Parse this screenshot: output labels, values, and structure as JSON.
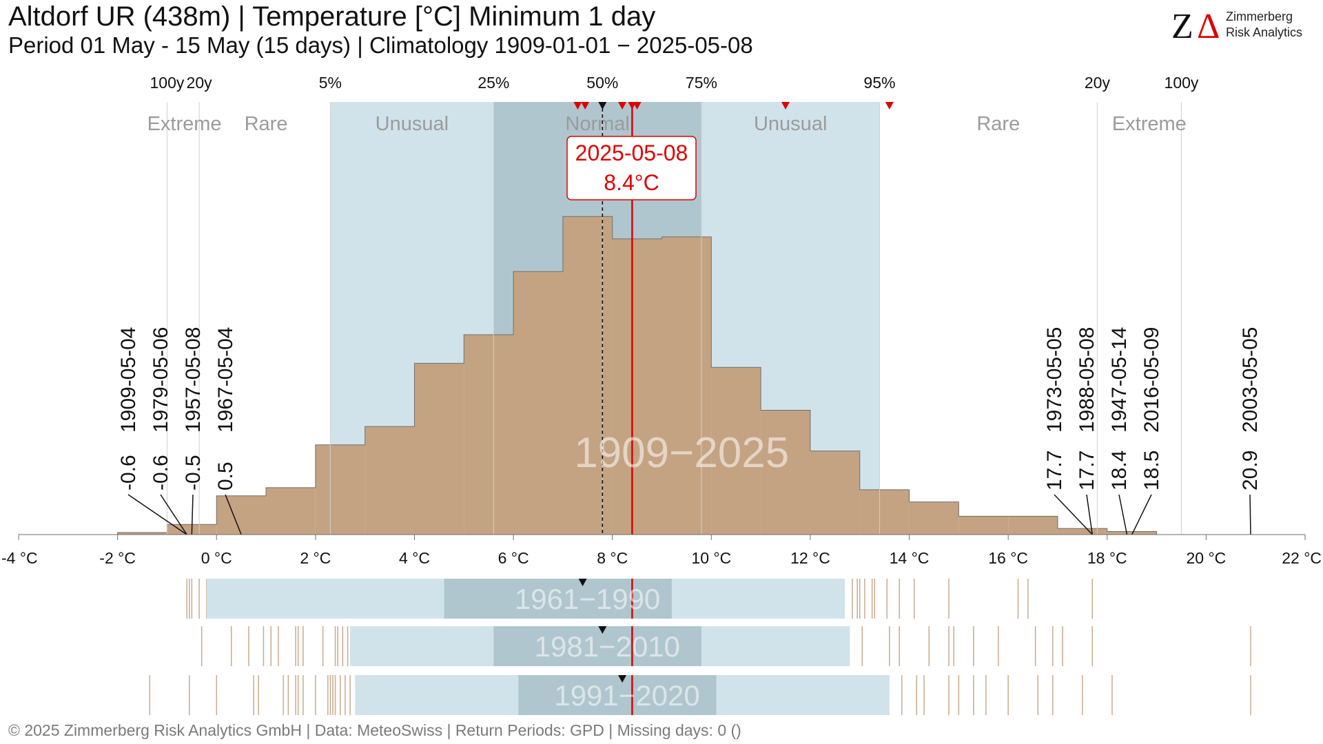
{
  "header": {
    "title": "Altdorf  UR (438m) | Temperature [°C] Minimum 1 day",
    "subtitle": "Period 01 May - 15 May (15 days) | Climatology 1909-01-01 − 2025-05-08"
  },
  "logo": {
    "mark_z": "Z",
    "mark_delta": "Δ",
    "line1": "Zimmerberg",
    "line2": "Risk Analytics"
  },
  "footer": {
    "text": "©  2025 Zimmerberg Risk Analytics GmbH | Data: MeteoSwiss | Return Periods: GPD | Missing days: 0 ()"
  },
  "chart_data": {
    "type": "bar",
    "title": "Altdorf  UR (438m) | Temperature [°C] Minimum 1 day",
    "xlabel": "",
    "ylabel": "",
    "x_range": [
      -4,
      22
    ],
    "x_ticks": [
      -4,
      -2,
      0,
      2,
      4,
      6,
      8,
      10,
      12,
      14,
      16,
      18,
      20,
      22
    ],
    "x_tick_unit": "°C",
    "period_label": "1909−2025",
    "histogram": {
      "bin_width": 1,
      "bins": [
        {
          "x0": -2,
          "x1": -1,
          "value": 1
        },
        {
          "x0": -1,
          "x1": 0,
          "value": 5
        },
        {
          "x0": 0,
          "x1": 1,
          "value": 19
        },
        {
          "x0": 1,
          "x1": 2,
          "value": 23
        },
        {
          "x0": 2,
          "x1": 3,
          "value": 44
        },
        {
          "x0": 3,
          "x1": 4,
          "value": 53
        },
        {
          "x0": 4,
          "x1": 5,
          "value": 84
        },
        {
          "x0": 5,
          "x1": 6,
          "value": 98
        },
        {
          "x0": 6,
          "x1": 7,
          "value": 129
        },
        {
          "x0": 7,
          "x1": 8,
          "value": 156
        },
        {
          "x0": 8,
          "x1": 9,
          "value": 145
        },
        {
          "x0": 9,
          "x1": 10,
          "value": 146
        },
        {
          "x0": 10,
          "x1": 11,
          "value": 82
        },
        {
          "x0": 11,
          "x1": 12,
          "value": 61
        },
        {
          "x0": 12,
          "x1": 13,
          "value": 41
        },
        {
          "x0": 13,
          "x1": 14,
          "value": 22
        },
        {
          "x0": 14,
          "x1": 15,
          "value": 16
        },
        {
          "x0": 15,
          "x1": 16,
          "value": 9
        },
        {
          "x0": 16,
          "x1": 17,
          "value": 9
        },
        {
          "x0": 17,
          "x1": 18,
          "value": 3
        },
        {
          "x0": 18,
          "x1": 19,
          "value": 1.5
        }
      ],
      "y_max": 175
    },
    "percentile_ticks": [
      {
        "label": "100y",
        "x": -1.0
      },
      {
        "label": "20y",
        "x": -0.35
      },
      {
        "label": "5%",
        "x": 2.3
      },
      {
        "label": "25%",
        "x": 5.6
      },
      {
        "label": "50%",
        "x": 7.8
      },
      {
        "label": "75%",
        "x": 9.8
      },
      {
        "label": "95%",
        "x": 13.4
      },
      {
        "label": "20y",
        "x": 17.8
      },
      {
        "label": "100y",
        "x": 19.5
      }
    ],
    "bands": {
      "unusual": [
        2.3,
        13.4
      ],
      "normal": [
        5.6,
        9.8
      ],
      "median": 7.8,
      "labels": [
        {
          "text": "Extreme",
          "x": -0.65
        },
        {
          "text": "Rare",
          "x": 1.0
        },
        {
          "text": "Unusual",
          "x": 3.95
        },
        {
          "text": "Normal",
          "x": 7.7
        },
        {
          "text": "Unusual",
          "x": 11.6
        },
        {
          "text": "Rare",
          "x": 15.8
        },
        {
          "text": "Extreme",
          "x": 18.85
        }
      ]
    },
    "red_markers": [
      7.3,
      7.45,
      8.2,
      8.4,
      8.5,
      11.5,
      13.6
    ],
    "current": {
      "date": "2025-05-08",
      "value_label": "8.4°C",
      "value": 8.4
    },
    "records_low": [
      {
        "date": "1909-05-04",
        "value": -0.6,
        "label": "-0.6"
      },
      {
        "date": "1979-05-06",
        "value": -0.6,
        "label": "-0.6"
      },
      {
        "date": "1957-05-08",
        "value": -0.5,
        "label": "-0.5"
      },
      {
        "date": "1967-05-04",
        "value": 0.5,
        "label": "0.5"
      }
    ],
    "records_high": [
      {
        "date": "1973-05-05",
        "value": 17.7,
        "label": "17.7"
      },
      {
        "date": "1988-05-08",
        "value": 17.7,
        "label": "17.7"
      },
      {
        "date": "1947-05-14",
        "value": 18.4,
        "label": "18.4"
      },
      {
        "date": "2016-05-09",
        "value": 18.5,
        "label": "18.5"
      },
      {
        "date": "2003-05-05",
        "value": 20.9,
        "label": "20.9"
      }
    ],
    "normals": [
      {
        "period": "1961−1990",
        "unusual": [
          -0.2,
          12.7
        ],
        "normal": [
          4.6,
          9.2
        ],
        "median": 7.4,
        "rugs": [
          -0.6,
          -0.55,
          -0.5,
          -0.35,
          -0.2,
          0.0,
          0.05,
          0.2,
          0.35,
          0.45,
          0.6,
          0.75,
          0.9,
          1.0,
          1.1,
          1.2,
          1.3,
          1.35,
          1.4,
          1.45,
          12.85,
          12.95,
          13.0,
          13.1,
          13.25,
          13.3,
          13.55,
          13.8,
          14.1,
          14.8,
          16.2,
          16.4,
          17.7
        ]
      },
      {
        "period": "1981−2010",
        "unusual": [
          2.7,
          12.8
        ],
        "normal": [
          5.6,
          9.8
        ],
        "median": 7.8,
        "rugs": [
          -0.3,
          0.3,
          0.65,
          0.95,
          1.1,
          1.25,
          1.6,
          1.65,
          1.75,
          2.15,
          2.4,
          2.45,
          2.55,
          2.65,
          13.05,
          13.6,
          13.8,
          14.4,
          14.8,
          14.9,
          15.3,
          15.8,
          16.55,
          16.9,
          17.1,
          17.7,
          20.9
        ]
      },
      {
        "period": "1991−2020",
        "unusual": [
          2.8,
          13.6
        ],
        "normal": [
          6.1,
          10.1
        ],
        "median": 8.2,
        "rugs": [
          -1.35,
          -0.55,
          0.0,
          0.75,
          0.85,
          1.35,
          1.45,
          1.6,
          1.65,
          1.75,
          2.0,
          2.25,
          2.3,
          2.35,
          2.4,
          2.5,
          2.6,
          2.7,
          13.85,
          14.15,
          14.3,
          14.8,
          15.0,
          15.3,
          15.55,
          16.0,
          16.6,
          16.9,
          17.5,
          18.1,
          20.9
        ]
      }
    ],
    "colors": {
      "histogram": "#c4a382",
      "histogram_edge": "#6e6e6e",
      "unusual": "#d0e3ea",
      "normal": "#b0c6ce",
      "current": "#e00000",
      "rug": "#c9aa8c"
    }
  }
}
